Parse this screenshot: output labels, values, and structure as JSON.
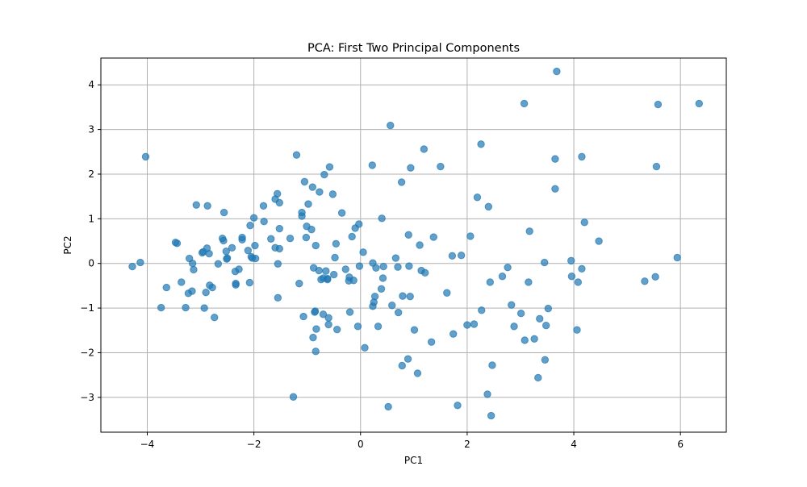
{
  "chart_data": {
    "type": "scatter",
    "title": "PCA: First Two Principal Components",
    "xlabel": "PC1",
    "ylabel": "PC2",
    "xlim": [
      -4.87,
      6.86
    ],
    "ylim": [
      -3.78,
      4.6
    ],
    "xticks": [
      -4,
      -2,
      0,
      2,
      4,
      6
    ],
    "yticks": [
      -3,
      -2,
      -1,
      0,
      1,
      2,
      3,
      4
    ],
    "xtick_labels": [
      "−4",
      "−2",
      "0",
      "2",
      "4",
      "6"
    ],
    "ytick_labels": [
      "−3",
      "−2",
      "−1",
      "0",
      "1",
      "2",
      "3",
      "4"
    ],
    "grid": true,
    "point_color": "#1f77b4",
    "point_alpha": 0.7,
    "series": [
      {
        "points": [
          [
            -4.28,
            -0.07
          ],
          [
            -4.13,
            0.02
          ],
          [
            -4.03,
            2.39
          ],
          [
            -3.74,
            -0.99
          ],
          [
            -3.64,
            -0.54
          ],
          [
            -3.47,
            0.47
          ],
          [
            -3.44,
            0.45
          ],
          [
            -3.36,
            -0.42
          ],
          [
            -3.28,
            -0.99
          ],
          [
            -3.21,
            0.11
          ],
          [
            -3.23,
            -0.67
          ],
          [
            -3.16,
            -0.62
          ],
          [
            -3.15,
            0.0
          ],
          [
            -3.13,
            -0.14
          ],
          [
            -3.08,
            1.31
          ],
          [
            -2.97,
            0.24
          ],
          [
            -2.95,
            0.26
          ],
          [
            -2.93,
            -1.0
          ],
          [
            -2.9,
            -0.65
          ],
          [
            -2.88,
            0.34
          ],
          [
            -2.87,
            1.29
          ],
          [
            -2.84,
            0.22
          ],
          [
            -2.83,
            -0.49
          ],
          [
            -2.78,
            -0.54
          ],
          [
            -2.74,
            -1.21
          ],
          [
            -2.67,
            -0.01
          ],
          [
            -2.56,
            1.14
          ],
          [
            -2.59,
            0.56
          ],
          [
            -2.57,
            0.51
          ],
          [
            -2.52,
            0.27
          ],
          [
            -2.51,
            0.1
          ],
          [
            -2.5,
            0.12
          ],
          [
            -2.41,
            0.35
          ],
          [
            -2.35,
            -0.18
          ],
          [
            -2.34,
            -0.45
          ],
          [
            -2.34,
            -0.48
          ],
          [
            -2.28,
            -0.13
          ],
          [
            -2.22,
            0.58
          ],
          [
            -2.22,
            0.53
          ],
          [
            -2.11,
            0.29
          ],
          [
            -2.08,
            -0.43
          ],
          [
            -2.07,
            0.85
          ],
          [
            -2.05,
            0.15
          ],
          [
            -2.03,
            0.12
          ],
          [
            -2.0,
            1.02
          ],
          [
            -1.98,
            0.4
          ],
          [
            -1.97,
            0.11
          ],
          [
            -1.81,
            0.94
          ],
          [
            -1.82,
            1.29
          ],
          [
            -1.68,
            0.55
          ],
          [
            -1.6,
            1.44
          ],
          [
            -1.56,
            1.56
          ],
          [
            -1.6,
            0.35
          ],
          [
            -1.55,
            -0.01
          ],
          [
            -1.55,
            -0.77
          ],
          [
            -1.52,
            1.36
          ],
          [
            -1.52,
            0.33
          ],
          [
            -1.52,
            0.78
          ],
          [
            -1.32,
            0.56
          ],
          [
            -1.26,
            -2.99
          ],
          [
            -1.2,
            2.43
          ],
          [
            -1.15,
            -0.45
          ],
          [
            -1.1,
            1.14
          ],
          [
            -1.1,
            1.06
          ],
          [
            -1.07,
            -1.19
          ],
          [
            -1.05,
            1.83
          ],
          [
            -1.01,
            0.83
          ],
          [
            -1.02,
            0.58
          ],
          [
            -0.98,
            1.33
          ],
          [
            -0.92,
            0.76
          ],
          [
            -0.9,
            1.71
          ],
          [
            -0.88,
            -0.1
          ],
          [
            -0.89,
            -1.66
          ],
          [
            -0.85,
            -1.07
          ],
          [
            -0.86,
            -1.09
          ],
          [
            -0.84,
            -1.97
          ],
          [
            -0.84,
            0.4
          ],
          [
            -0.83,
            -1.47
          ],
          [
            -0.78,
            -0.16
          ],
          [
            -0.77,
            1.6
          ],
          [
            -0.74,
            -0.36
          ],
          [
            -0.7,
            -0.33
          ],
          [
            -0.7,
            -1.14
          ],
          [
            -0.68,
            1.99
          ],
          [
            -0.65,
            -0.17
          ],
          [
            -0.62,
            -0.34
          ],
          [
            -0.62,
            -0.36
          ],
          [
            -0.6,
            -1.22
          ],
          [
            -0.6,
            -1.37
          ],
          [
            -0.58,
            2.16
          ],
          [
            -0.52,
            1.55
          ],
          [
            -0.5,
            -0.25
          ],
          [
            -0.48,
            0.13
          ],
          [
            -0.46,
            0.44
          ],
          [
            -0.44,
            -1.48
          ],
          [
            -0.35,
            1.13
          ],
          [
            -0.28,
            -0.13
          ],
          [
            -0.22,
            -0.39
          ],
          [
            -0.21,
            -0.31
          ],
          [
            -0.2,
            -1.09
          ],
          [
            -0.16,
            0.6
          ],
          [
            -0.13,
            -0.38
          ],
          [
            -0.1,
            0.79
          ],
          [
            -0.05,
            -1.41
          ],
          [
            -0.03,
            0.88
          ],
          [
            -0.02,
            -0.06
          ],
          [
            0.05,
            0.25
          ],
          [
            0.08,
            -1.89
          ],
          [
            0.22,
            2.2
          ],
          [
            0.23,
            0.01
          ],
          [
            0.23,
            -0.96
          ],
          [
            0.25,
            -0.87
          ],
          [
            0.27,
            -0.74
          ],
          [
            0.29,
            -0.1
          ],
          [
            0.33,
            -1.41
          ],
          [
            0.39,
            -0.57
          ],
          [
            0.4,
            1.01
          ],
          [
            0.42,
            -0.33
          ],
          [
            0.43,
            -0.07
          ],
          [
            0.52,
            -3.21
          ],
          [
            0.56,
            3.09
          ],
          [
            0.59,
            -0.94
          ],
          [
            0.66,
            0.12
          ],
          [
            0.7,
            -0.08
          ],
          [
            0.71,
            -1.1
          ],
          [
            0.77,
            1.82
          ],
          [
            0.78,
            -2.29
          ],
          [
            0.79,
            -0.73
          ],
          [
            0.89,
            -2.14
          ],
          [
            0.9,
            0.64
          ],
          [
            0.91,
            -0.06
          ],
          [
            0.93,
            -0.74
          ],
          [
            0.94,
            2.14
          ],
          [
            1.01,
            -1.49
          ],
          [
            1.07,
            -2.46
          ],
          [
            1.11,
            0.41
          ],
          [
            1.14,
            -0.16
          ],
          [
            1.19,
            2.56
          ],
          [
            1.21,
            -0.21
          ],
          [
            1.33,
            -1.76
          ],
          [
            1.37,
            0.59
          ],
          [
            1.5,
            2.17
          ],
          [
            1.62,
            -0.66
          ],
          [
            1.72,
            0.17
          ],
          [
            1.74,
            -1.58
          ],
          [
            1.82,
            -3.18
          ],
          [
            1.89,
            0.18
          ],
          [
            2.0,
            -1.38
          ],
          [
            2.06,
            0.61
          ],
          [
            2.13,
            -1.36
          ],
          [
            2.19,
            1.48
          ],
          [
            2.26,
            2.67
          ],
          [
            2.27,
            -1.05
          ],
          [
            2.38,
            -2.93
          ],
          [
            2.4,
            1.27
          ],
          [
            2.43,
            -0.42
          ],
          [
            2.45,
            -3.41
          ],
          [
            2.47,
            -2.28
          ],
          [
            2.66,
            -0.29
          ],
          [
            2.76,
            -0.09
          ],
          [
            2.83,
            -0.93
          ],
          [
            2.88,
            -1.41
          ],
          [
            3.01,
            -1.12
          ],
          [
            3.07,
            3.58
          ],
          [
            3.08,
            -1.72
          ],
          [
            3.15,
            -0.42
          ],
          [
            3.17,
            0.72
          ],
          [
            3.26,
            -1.69
          ],
          [
            3.33,
            -2.56
          ],
          [
            3.36,
            -1.24
          ],
          [
            3.45,
            0.02
          ],
          [
            3.46,
            -2.16
          ],
          [
            3.48,
            -1.39
          ],
          [
            3.52,
            -1.01
          ],
          [
            3.65,
            2.34
          ],
          [
            3.65,
            1.67
          ],
          [
            3.68,
            4.3
          ],
          [
            3.95,
            0.06
          ],
          [
            3.96,
            -0.29
          ],
          [
            4.06,
            -1.49
          ],
          [
            4.08,
            -0.42
          ],
          [
            4.15,
            2.39
          ],
          [
            4.15,
            -0.12
          ],
          [
            4.2,
            0.92
          ],
          [
            4.47,
            0.5
          ],
          [
            5.33,
            -0.4
          ],
          [
            5.53,
            -0.3
          ],
          [
            5.55,
            2.17
          ],
          [
            5.58,
            3.56
          ],
          [
            5.94,
            0.13
          ],
          [
            6.35,
            3.58
          ]
        ]
      }
    ]
  }
}
